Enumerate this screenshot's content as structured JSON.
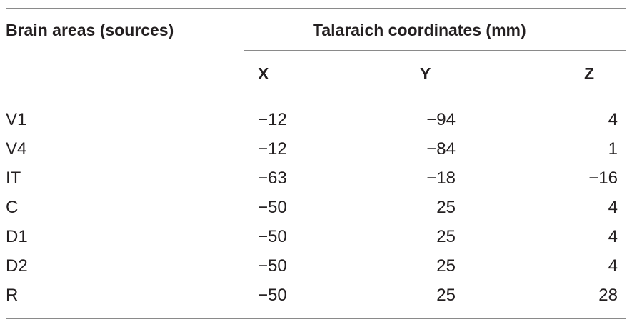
{
  "table": {
    "header": {
      "col_brain_areas": "Brain areas (sources)",
      "group_talaraich": "Talaraich coordinates (mm)",
      "col_x": "X",
      "col_y": "Y",
      "col_z": "Z"
    },
    "rows": [
      {
        "area": "V1",
        "x": "−12",
        "y": "−94",
        "z": "4"
      },
      {
        "area": "V4",
        "x": "−12",
        "y": "−84",
        "z": "1"
      },
      {
        "area": "IT",
        "x": "−63",
        "y": "−18",
        "z": "−16"
      },
      {
        "area": "C",
        "x": "−50",
        "y": "25",
        "z": "4"
      },
      {
        "area": "D1",
        "x": "−50",
        "y": "25",
        "z": "4"
      },
      {
        "area": "D2",
        "x": "−50",
        "y": "25",
        "z": "4"
      },
      {
        "area": "R",
        "x": "−50",
        "y": "25",
        "z": "28"
      }
    ]
  }
}
